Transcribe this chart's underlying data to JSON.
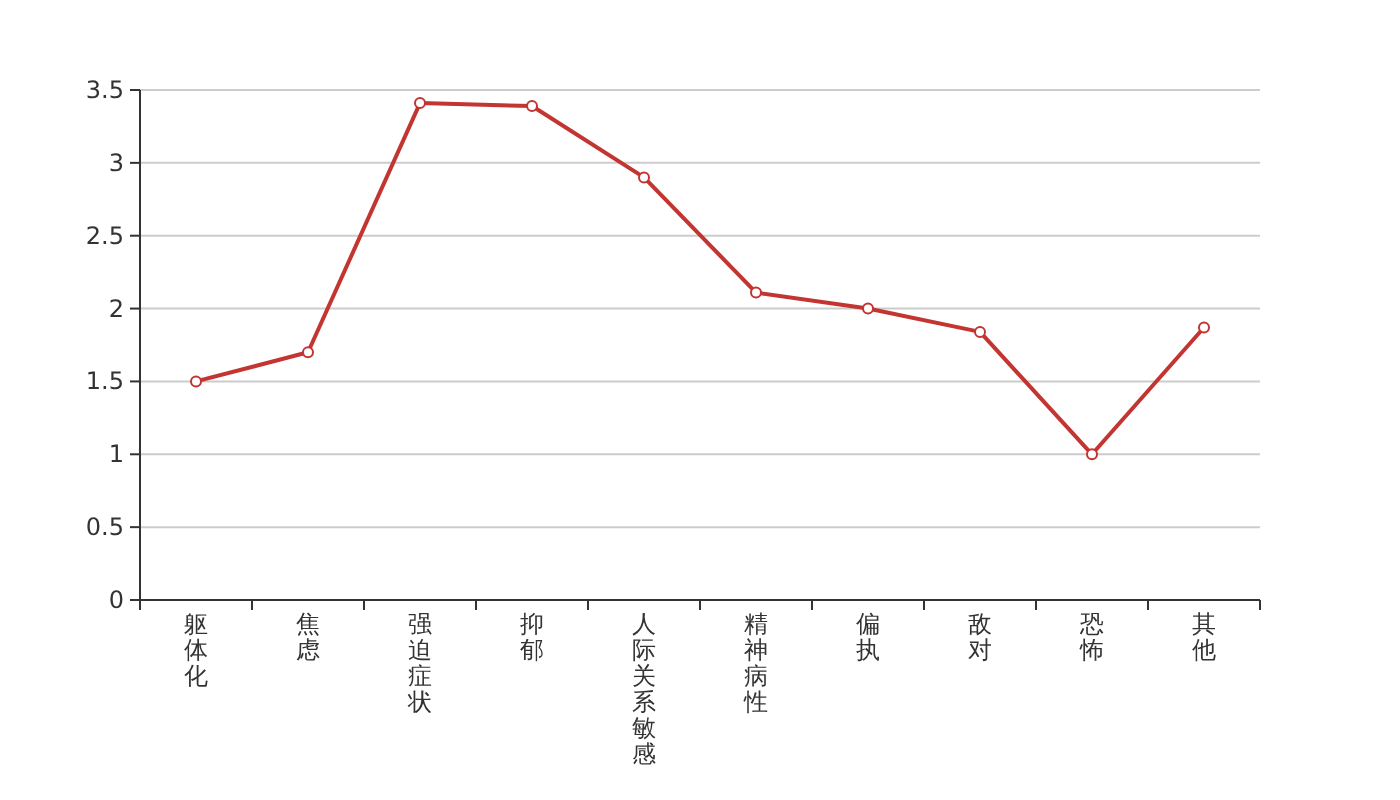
{
  "chart_data": {
    "type": "line",
    "categories": [
      "躯体化",
      "焦虑",
      "强迫症状",
      "抑郁",
      "人际关系敏感",
      "精神病性",
      "偏执",
      "敌对",
      "恐怖",
      "其他"
    ],
    "series": [
      {
        "color": "#c23531",
        "values": [
          1.5,
          1.7,
          3.41,
          3.39,
          2.9,
          2.11,
          2.0,
          1.84,
          1.0,
          1.87
        ]
      }
    ],
    "ylim": [
      0,
      3.5
    ],
    "yticks": [
      0,
      0.5,
      1,
      1.5,
      2,
      2.5,
      3,
      3.5
    ],
    "grid": "y",
    "marker": "circle",
    "line_style": "solid"
  }
}
